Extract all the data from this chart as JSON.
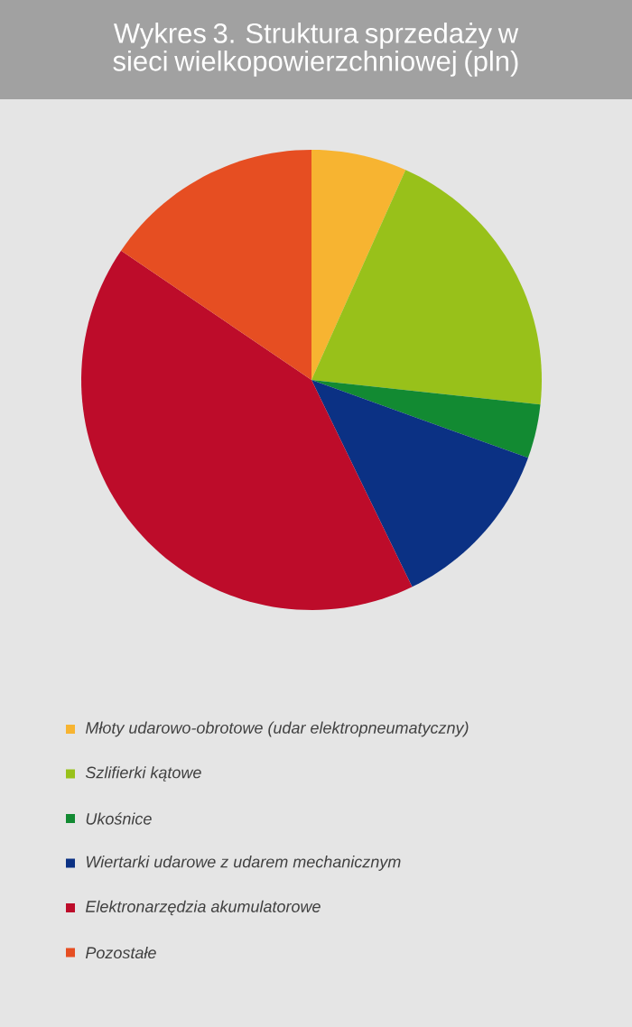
{
  "chart_data": {
    "type": "pie",
    "title": "Wykres 3. Struktura sprzedaży w sieci wielkopowierzchniowej (pln)",
    "categories": [
      "Młoty udarowo-obrotowe (udar elektropneumatyczny)",
      "Szlifierki kątowe",
      "Ukośnice",
      "Wiertarki udarowe z udarem mechanicznym",
      "Elektronarzędzia akumulatorowe",
      "Pozostałe"
    ],
    "values": [
      6.7,
      20,
      3.8,
      12.3,
      41.7,
      15.5
    ],
    "colors": [
      "#f7b431",
      "#98c11a",
      "#128a32",
      "#0b3184",
      "#bd0c2a",
      "#e64e22"
    ],
    "legend": "bottom"
  }
}
